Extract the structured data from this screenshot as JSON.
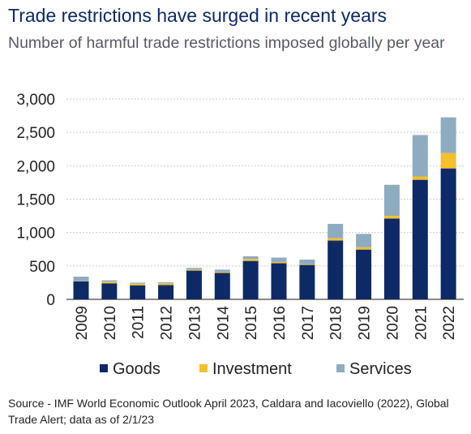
{
  "header": {
    "title": "Trade restrictions have surged in recent years",
    "subtitle": "Number of harmful trade restrictions imposed globally per year"
  },
  "colors": {
    "goods": "#0d2a66",
    "investment": "#f5c02b",
    "services": "#8eacc0",
    "grid": "#c9c9c9",
    "text": "#222222"
  },
  "chart_data": {
    "type": "bar",
    "stacked": true,
    "categories": [
      "2009",
      "2010",
      "2011",
      "2012",
      "2013",
      "2014",
      "2015",
      "2016",
      "2017",
      "2018",
      "2019",
      "2020",
      "2021",
      "2022"
    ],
    "series": [
      {
        "name": "Goods",
        "color": "#0d2a66",
        "values": [
          270,
          240,
          210,
          215,
          430,
          395,
          575,
          540,
          515,
          880,
          745,
          1210,
          1790,
          1960
        ]
      },
      {
        "name": "Investment",
        "color": "#f5c02b",
        "values": [
          5,
          25,
          25,
          25,
          15,
          15,
          30,
          20,
          10,
          35,
          35,
          40,
          50,
          230
        ]
      },
      {
        "name": "Services",
        "color": "#8eacc0",
        "values": [
          65,
          20,
          15,
          15,
          25,
          35,
          40,
          65,
          70,
          215,
          200,
          465,
          620,
          535
        ]
      }
    ],
    "ylim": [
      0,
      3000
    ],
    "yticks": [
      0,
      500,
      1000,
      1500,
      2000,
      2500,
      3000
    ],
    "ytick_labels": [
      "0",
      "500",
      "1,000",
      "1,500",
      "2,000",
      "2,500",
      "3,000"
    ],
    "grid": true,
    "legend": "bottom"
  },
  "footer": {
    "source": "Source - IMF World Economic Outlook April 2023, Caldara and Iacoviello (2022), Global Trade Alert; data as of 2/1/23"
  }
}
